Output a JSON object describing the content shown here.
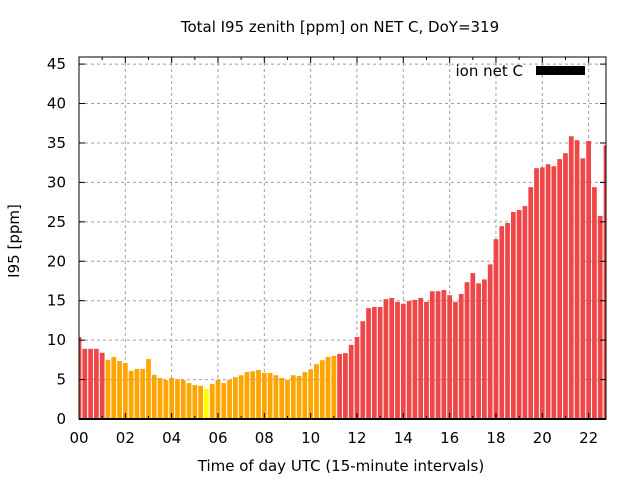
{
  "chart_data": {
    "type": "bar",
    "title": "Total I95 zenith [ppm] on NET C, DoY=319",
    "xlabel": "Time of day UTC (15-minute intervals)",
    "ylabel": "I95 [ppm]",
    "xlim": [
      0,
      22.75
    ],
    "ylim": [
      0,
      45.9
    ],
    "x_ticks": [
      0,
      2,
      4,
      6,
      8,
      10,
      12,
      14,
      16,
      18,
      20,
      22
    ],
    "x_tick_labels": [
      "00",
      "02",
      "04",
      "06",
      "08",
      "10",
      "12",
      "14",
      "16",
      "18",
      "20",
      "22"
    ],
    "y_ticks": [
      0,
      5,
      10,
      15,
      20,
      25,
      30,
      35,
      40,
      45
    ],
    "y_tick_labels": [
      "0",
      "5",
      "10",
      "15",
      "20",
      "25",
      "30",
      "35",
      "40",
      "45"
    ],
    "grid": true,
    "interval_hours": 0.25,
    "legend": {
      "label": "ion net C",
      "position": "top-right",
      "color": "#000000"
    },
    "colors": {
      "high": "#ef4747",
      "medium": "#ffa500",
      "low": "#ffff00"
    },
    "series": [
      {
        "name": "ion net C",
        "values": [
          10.4,
          8.9,
          8.9,
          8.9,
          8.4,
          7.5,
          7.85,
          7.35,
          7.1,
          6.1,
          6.35,
          6.35,
          7.6,
          5.6,
          5.2,
          4.95,
          5.2,
          5.05,
          4.95,
          4.55,
          4.3,
          4.2,
          3.8,
          4.45,
          4.95,
          4.55,
          4.95,
          5.3,
          5.55,
          5.95,
          6.05,
          6.2,
          5.85,
          5.85,
          5.55,
          5.2,
          4.95,
          5.55,
          5.45,
          5.95,
          6.3,
          6.95,
          7.45,
          7.85,
          8.0,
          8.25,
          8.35,
          9.4,
          10.4,
          12.4,
          14.05,
          14.2,
          14.2,
          15.2,
          15.35,
          14.85,
          14.6,
          14.95,
          15.1,
          15.35,
          14.85,
          16.2,
          16.2,
          16.35,
          15.7,
          14.85,
          15.85,
          17.35,
          18.5,
          17.2,
          17.7,
          19.6,
          22.8,
          24.45,
          24.85,
          26.25,
          26.5,
          27.0,
          29.4,
          31.8,
          31.9,
          32.3,
          32.05,
          32.95,
          33.7,
          35.85,
          35.35,
          33.05,
          35.25,
          29.4,
          25.75,
          34.7
        ],
        "color_class": [
          "high",
          "high",
          "high",
          "high",
          "high",
          "medium",
          "medium",
          "medium",
          "medium",
          "medium",
          "medium",
          "medium",
          "medium",
          "medium",
          "medium",
          "medium",
          "medium",
          "medium",
          "medium",
          "medium",
          "medium",
          "medium",
          "low",
          "medium",
          "medium",
          "medium",
          "medium",
          "medium",
          "medium",
          "medium",
          "medium",
          "medium",
          "medium",
          "medium",
          "medium",
          "medium",
          "medium",
          "medium",
          "medium",
          "medium",
          "medium",
          "medium",
          "medium",
          "medium",
          "medium",
          "high",
          "high",
          "high",
          "high",
          "high",
          "high",
          "high",
          "high",
          "high",
          "high",
          "high",
          "high",
          "high",
          "high",
          "high",
          "high",
          "high",
          "high",
          "high",
          "high",
          "high",
          "high",
          "high",
          "high",
          "high",
          "high",
          "high",
          "high",
          "high",
          "high",
          "high",
          "high",
          "high",
          "high",
          "high",
          "high",
          "high",
          "high",
          "high",
          "high",
          "high",
          "high",
          "high",
          "high",
          "high",
          "high",
          "high"
        ]
      }
    ]
  }
}
